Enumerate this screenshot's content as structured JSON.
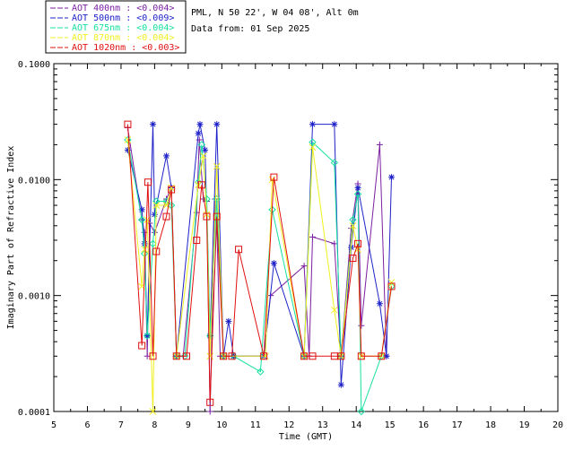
{
  "header": {
    "site": "PML, N 50 22', W 04 08', Alt 0m",
    "data_from": "Data from: 01 Sep 2025"
  },
  "chart_data": {
    "type": "line",
    "title": "",
    "xlabel": "Time (GMT)",
    "ylabel": "Imaginary Part of Refractive Index",
    "xlim": [
      5,
      20
    ],
    "ylim": [
      0.0001,
      0.1
    ],
    "yscale": "log",
    "xticks": [
      "5",
      "6",
      "7",
      "8",
      "9",
      "10",
      "11",
      "12",
      "13",
      "14",
      "15",
      "16",
      "17",
      "18",
      "19",
      "20"
    ],
    "yticks": [
      "0.0001",
      "0.0010",
      "0.0100",
      "0.1000"
    ],
    "legend_position": "top-left-outside",
    "series": [
      {
        "name": "AOT  400nm : <0.004>",
        "color": "#7b1fa2",
        "marker": "plus",
        "points": [
          [
            7.2,
            0.028
          ],
          [
            7.62,
            0.0045
          ],
          [
            7.7,
            0.0035
          ],
          [
            7.78,
            0.0003
          ],
          [
            7.85,
            0.0042
          ],
          [
            8.0,
            0.0035
          ],
          [
            8.35,
            0.0068
          ],
          [
            8.5,
            0.0085
          ],
          [
            8.65,
            0.0003
          ],
          [
            8.85,
            0.0003
          ],
          [
            9.25,
            0.0052
          ],
          [
            9.33,
            0.022
          ],
          [
            9.45,
            0.0068
          ],
          [
            9.55,
            0.0065
          ],
          [
            9.65,
            0.0001
          ],
          [
            9.8,
            0.0068
          ],
          [
            9.85,
            0.0043
          ],
          [
            9.95,
            0.0003
          ],
          [
            10.05,
            0.0003
          ],
          [
            11.25,
            0.0003
          ],
          [
            11.45,
            0.001
          ],
          [
            12.45,
            0.0018
          ],
          [
            12.6,
            0.0003
          ],
          [
            12.7,
            0.0032
          ],
          [
            13.35,
            0.0028
          ],
          [
            13.55,
            0.0003
          ],
          [
            13.85,
            0.0038
          ],
          [
            14.05,
            0.0092
          ],
          [
            14.15,
            0.00055
          ],
          [
            14.7,
            0.02
          ],
          [
            14.9,
            0.0003
          ]
        ]
      },
      {
        "name": "AOT  500nm : <0.009>",
        "color": "#1e22c8",
        "marker": "star",
        "points": [
          [
            7.2,
            0.018
          ],
          [
            7.62,
            0.0055
          ],
          [
            7.7,
            0.0028
          ],
          [
            7.78,
            0.00045
          ],
          [
            7.95,
            0.03
          ],
          [
            8.0,
            0.005
          ],
          [
            8.35,
            0.016
          ],
          [
            8.5,
            0.0085
          ],
          [
            8.65,
            0.0003
          ],
          [
            9.3,
            0.025
          ],
          [
            9.35,
            0.03
          ],
          [
            9.5,
            0.018
          ],
          [
            9.65,
            0.00045
          ],
          [
            9.85,
            0.03
          ],
          [
            10.05,
            0.0003
          ],
          [
            10.2,
            0.0006
          ],
          [
            10.35,
            0.0003
          ],
          [
            11.25,
            0.0003
          ],
          [
            11.55,
            0.0019
          ],
          [
            12.45,
            0.0003
          ],
          [
            12.7,
            0.03
          ],
          [
            13.35,
            0.03
          ],
          [
            13.55,
            0.00017
          ],
          [
            13.85,
            0.0026
          ],
          [
            14.05,
            0.0085
          ],
          [
            14.7,
            0.00085
          ],
          [
            14.9,
            0.0003
          ],
          [
            15.05,
            0.0105
          ]
        ]
      },
      {
        "name": "AOT  675nm : <0.004>",
        "color": "#16e0a0",
        "marker": "diamond",
        "points": [
          [
            7.2,
            0.022
          ],
          [
            7.62,
            0.0045
          ],
          [
            7.7,
            0.0023
          ],
          [
            7.78,
            0.00045
          ],
          [
            7.95,
            0.0028
          ],
          [
            8.05,
            0.0065
          ],
          [
            8.35,
            0.0065
          ],
          [
            8.5,
            0.006
          ],
          [
            8.65,
            0.0003
          ],
          [
            8.9,
            0.0003
          ],
          [
            9.3,
            0.0095
          ],
          [
            9.4,
            0.02
          ],
          [
            9.55,
            0.0068
          ],
          [
            9.65,
            0.00045
          ],
          [
            9.85,
            0.0068
          ],
          [
            10.05,
            0.0003
          ],
          [
            10.35,
            0.0003
          ],
          [
            11.15,
            0.00022
          ],
          [
            11.5,
            0.0055
          ],
          [
            12.45,
            0.0003
          ],
          [
            12.7,
            0.021
          ],
          [
            13.35,
            0.014
          ],
          [
            13.55,
            0.0003
          ],
          [
            13.9,
            0.0045
          ],
          [
            14.05,
            0.0075
          ],
          [
            14.15,
            0.0001
          ],
          [
            14.75,
            0.0003
          ],
          [
            15.05,
            0.0012
          ]
        ]
      },
      {
        "name": "AOT  870nm : <0.004>",
        "color": "#f0f020",
        "marker": "x",
        "points": [
          [
            7.2,
            0.022
          ],
          [
            7.62,
            0.0012
          ],
          [
            7.7,
            0.0025
          ],
          [
            7.78,
            0.0045
          ],
          [
            7.95,
            0.0001
          ],
          [
            8.05,
            0.006
          ],
          [
            8.35,
            0.006
          ],
          [
            8.5,
            0.0085
          ],
          [
            8.65,
            0.0003
          ],
          [
            9.3,
            0.009
          ],
          [
            9.45,
            0.016
          ],
          [
            9.55,
            0.005
          ],
          [
            9.65,
            0.0003
          ],
          [
            9.85,
            0.013
          ],
          [
            10.05,
            0.0003
          ],
          [
            11.3,
            0.0003
          ],
          [
            11.5,
            0.01
          ],
          [
            12.45,
            0.0003
          ],
          [
            12.7,
            0.019
          ],
          [
            13.35,
            0.00075
          ],
          [
            13.55,
            0.0003
          ],
          [
            13.9,
            0.004
          ],
          [
            14.05,
            0.0025
          ],
          [
            14.15,
            0.0003
          ],
          [
            14.75,
            0.0003
          ],
          [
            15.05,
            0.0013
          ]
        ]
      },
      {
        "name": "AOT 1020nm : <0.003>",
        "color": "#e01010",
        "marker": "square",
        "points": [
          [
            7.2,
            0.03
          ],
          [
            7.62,
            0.00037
          ],
          [
            7.8,
            0.0095
          ],
          [
            7.95,
            0.0003
          ],
          [
            8.05,
            0.0024
          ],
          [
            8.35,
            0.0048
          ],
          [
            8.5,
            0.0082
          ],
          [
            8.65,
            0.0003
          ],
          [
            8.95,
            0.0003
          ],
          [
            9.25,
            0.003
          ],
          [
            9.4,
            0.009
          ],
          [
            9.55,
            0.0048
          ],
          [
            9.65,
            0.00012
          ],
          [
            9.85,
            0.0048
          ],
          [
            10.05,
            0.0003
          ],
          [
            10.3,
            0.0003
          ],
          [
            10.5,
            0.0025
          ],
          [
            11.25,
            0.0003
          ],
          [
            11.55,
            0.0105
          ],
          [
            12.45,
            0.0003
          ],
          [
            12.7,
            0.0003
          ],
          [
            13.35,
            0.0003
          ],
          [
            13.55,
            0.0003
          ],
          [
            13.9,
            0.0021
          ],
          [
            14.05,
            0.0028
          ],
          [
            14.15,
            0.0003
          ],
          [
            14.75,
            0.0003
          ],
          [
            15.05,
            0.0012
          ]
        ]
      }
    ]
  }
}
